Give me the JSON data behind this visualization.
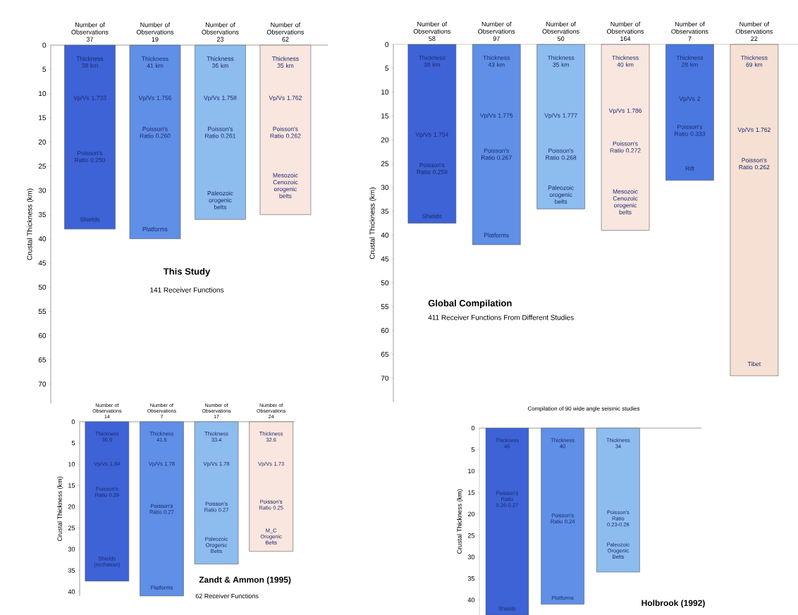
{
  "chart_data": [
    {
      "type": "bar",
      "title": "This Study",
      "subtitle": "141 Receiver Functions",
      "ylabel": "Crustal Thickness (km)",
      "categories": [
        "Number of Observations 37",
        "Number of Observations 19",
        "Number of Observations 23",
        "Number of Observations 62"
      ],
      "values": [
        38,
        40,
        36,
        35
      ],
      "colors": [
        "#3d63d6",
        "#5f8fe6",
        "#8dbcef",
        "#f9e6de"
      ],
      "ylim": [
        74,
        0
      ],
      "yticks": [
        0,
        5,
        10,
        15,
        20,
        25,
        30,
        35,
        40,
        45,
        50,
        55,
        60,
        65,
        70
      ],
      "annotations": [
        "Thickness 38 km",
        "Vp/Vs 1.733",
        "Poisson's Ratio 0.250",
        "Shields",
        "Thickness 41 km",
        "Vp/Vs 1.756",
        "Poisson's Ratio 0.260",
        "Platforms",
        "Thickness 36 km",
        "Vp/Vs 1.758",
        "Poisson's Ratio 0.261",
        "Paleozoic orogenic belts",
        "Thickness 35 km",
        "Vp/Vs 1.762",
        "Poisson's Ratio 0.262",
        "Mesozoic Cenozoic orogenic belts"
      ]
    },
    {
      "type": "bar",
      "title": "Global Compilation",
      "subtitle": "411 Receiver Functions From Different Studies",
      "ylabel": "Crustal Thickness (km)",
      "categories": [
        "Number of Observations 58",
        "Number of Observations 97",
        "Number of Observations 50",
        "Number of Observations 164",
        "Number of Observations 7",
        "Number of Observations 22"
      ],
      "values": [
        37.5,
        42,
        34.5,
        39,
        28.5,
        69.5
      ],
      "colors": [
        "#3d63d6",
        "#5f8fe6",
        "#8dbcef",
        "#f9e6de",
        "#4a78e0",
        "#f5e0d3"
      ],
      "ylim": [
        75,
        0
      ],
      "yticks": [
        0,
        5,
        10,
        15,
        20,
        25,
        30,
        35,
        40,
        45,
        50,
        55,
        60,
        65,
        70
      ],
      "annotations": [
        "Thickness 38 km",
        "Vp/Vs 1.754",
        "Poisson's Ratio 0.259",
        "Shields",
        "Thickness 43 km",
        "Vp/Vs 1.775",
        "Poisson's Ratio 0.267",
        "Platforms",
        "Thickness 35 km",
        "Vp/Vs 1.777",
        "Poisson's Ratio 0.268",
        "Paleozoic orogenic belts",
        "Thickness 40 km",
        "Vp/Vs 1.786",
        "Poisson's Ratio 0.272",
        "Mesozoic Cenozoic orogenic belts",
        "Thickness 28 km",
        "Vp/Vs 2",
        "Poisson's Ratio 0.333",
        "Rift",
        "Thickness 69 km",
        "Vp/Vs 1.762",
        "Poisson's Ratio 0.262",
        "Tibet"
      ]
    },
    {
      "type": "bar",
      "title": "Zandt & Ammon (1995)",
      "subtitle": "62 Receiver Functions",
      "ylabel": "Crustal Thickness (km)",
      "categories": [
        "Number of Observations 14",
        "Number of Observations 7",
        "Number of Observations 17",
        "Number of Observations 24"
      ],
      "values": [
        37.5,
        41,
        33.5,
        30.5
      ],
      "colors": [
        "#3d63d6",
        "#5f8fe6",
        "#8dbcef",
        "#f9e6de"
      ],
      "ylim": [
        41,
        0
      ],
      "yticks": [
        0,
        5,
        10,
        15,
        20,
        25,
        30,
        35,
        40
      ],
      "annotations": [
        "Thickness 36.9",
        "Vp/Vs 1.84",
        "Poisson's Ratio 0.29",
        "Shields (Archaean)",
        "Thickness 41.5",
        "Vp/Vs 1.78",
        "Poisson's Ratio 0.27",
        "Platforms",
        "Thickness 33.4",
        "Vp/Vs 1.78",
        "Poisson's Ratio 0.27",
        "Paleozoic Orogenic Belts",
        "Thickness 32.6",
        "Vp/Vs 1.73",
        "Poisson's Ratio 0.25",
        "M_C Orogenic Belts"
      ]
    },
    {
      "type": "bar",
      "title": "Holbrook (1992)",
      "subtitle": "Compilation of 90 wide angle seismic studies",
      "ylabel": "Crustal Thickness (km)",
      "categories": [
        null,
        null,
        null,
        null
      ],
      "values": [
        43.5,
        41,
        33.5,
        null
      ],
      "colors": [
        "#3d63d6",
        "#5f8fe6",
        "#8dbcef",
        "#8dbcef"
      ],
      "ylim": [
        43.5,
        0
      ],
      "yticks": [
        0,
        5,
        10,
        15,
        20,
        25,
        30,
        35,
        40
      ],
      "annotations": [
        "Thickness 45",
        "Poisson's Ratio 0.26-0.27",
        "Shields",
        "Thickness 40",
        "Poisson's Ratio 0.24",
        "Platforms",
        "Thickness 34",
        "Poisson's Ratio 0.23-0.26",
        "Paleozoic Orogenic Belts"
      ]
    }
  ]
}
